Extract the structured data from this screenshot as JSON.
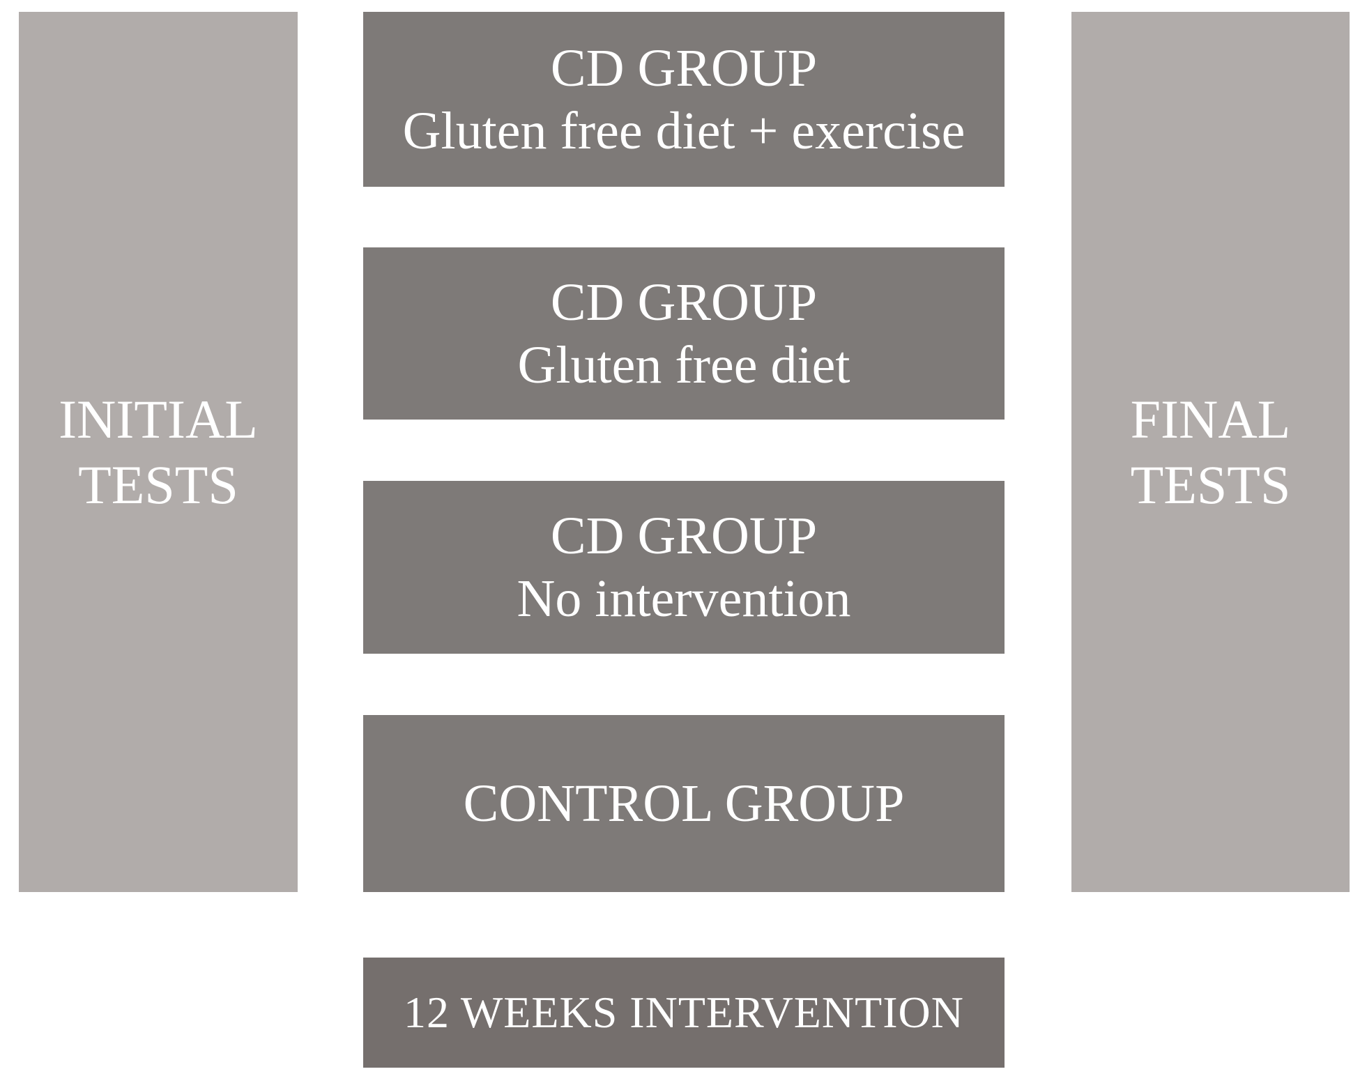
{
  "figure": {
    "left_panel": {
      "line1": "INITIAL",
      "line2": "TESTS"
    },
    "right_panel": {
      "line1": "FINAL",
      "line2": "TESTS"
    },
    "groups": [
      {
        "title": "CD GROUP",
        "subtitle": "Gluten free diet + exercise"
      },
      {
        "title": "CD GROUP",
        "subtitle": "Gluten free diet"
      },
      {
        "title": "CD GROUP",
        "subtitle": "No intervention"
      },
      {
        "title": "CONTROL GROUP",
        "subtitle": ""
      }
    ],
    "timeline": {
      "label": "12 WEEKS INTERVENTION"
    }
  },
  "palette": {
    "page_bg": "#ffffff",
    "side_panel_bg": "#b1acaa",
    "group_box_bg": "#7e7a78",
    "timeline_box_bg": "#756f6d",
    "text": "#ffffff"
  }
}
